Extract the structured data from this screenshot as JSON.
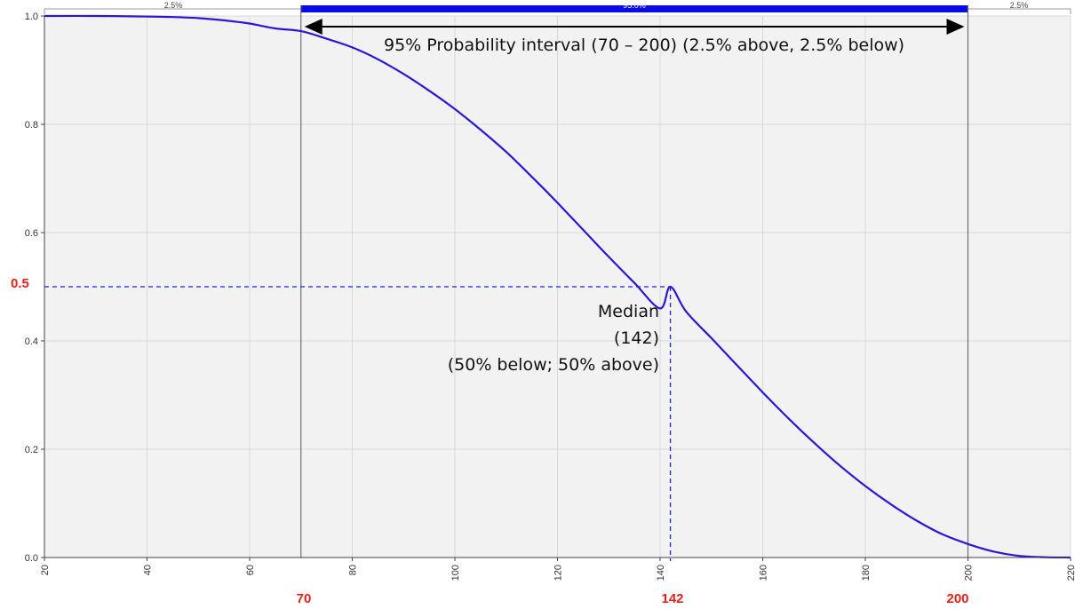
{
  "chart_data": {
    "type": "line",
    "x_ticks": [
      20,
      40,
      60,
      80,
      100,
      120,
      140,
      160,
      180,
      200,
      220
    ],
    "y_ticks": [
      0.0,
      0.2,
      0.4,
      0.6,
      0.8,
      1.0
    ],
    "y_tick_labels": [
      "0.0",
      "0.2",
      "0.4",
      "0.6",
      "0.8",
      "1.0"
    ],
    "xlim": [
      20,
      220
    ],
    "ylim": [
      0,
      1
    ],
    "grid": true,
    "series": [
      {
        "color": "#2b16d6",
        "x": [
          20,
          30,
          40,
          45,
          50,
          55,
          60,
          65,
          70,
          75,
          80,
          85,
          90,
          95,
          100,
          105,
          110,
          115,
          120,
          125,
          130,
          135,
          140,
          142,
          145,
          150,
          155,
          160,
          165,
          170,
          175,
          180,
          185,
          190,
          195,
          200,
          205,
          210,
          215,
          220
        ],
        "y": [
          1.0,
          1.0,
          0.999,
          0.998,
          0.996,
          0.992,
          0.986,
          0.977,
          0.972,
          0.958,
          0.942,
          0.92,
          0.893,
          0.862,
          0.828,
          0.79,
          0.749,
          0.703,
          0.655,
          0.605,
          0.555,
          0.507,
          0.46,
          0.5,
          0.455,
          0.405,
          0.355,
          0.305,
          0.257,
          0.212,
          0.17,
          0.132,
          0.098,
          0.068,
          0.043,
          0.025,
          0.011,
          0.003,
          0.0005,
          0.0
        ]
      }
    ],
    "median": {
      "x": 142,
      "y": 0.5
    },
    "interval": {
      "low": 70,
      "high": 200
    },
    "band_labels": [
      "2.5%",
      "95.0%",
      "2.5%"
    ],
    "highlight_labels": {
      "median_y": "0.5",
      "low_x": "70",
      "median_x": "142",
      "high_x": "200"
    },
    "annotations": {
      "interval": "95% Probability  interval (70 – 200) (2.5% above,  2.5% below)",
      "median_line1": "Median",
      "median_line2": "(142)",
      "median_line3": "(50% below;  50% above)"
    },
    "colors": {
      "curve": "#2b16d6",
      "band": "#0a0ae6",
      "highlight": "#e8201a",
      "plot_bg": "#f2f2f2",
      "grid": "#d9d9d9",
      "dashed": "#1f1fe0"
    }
  }
}
